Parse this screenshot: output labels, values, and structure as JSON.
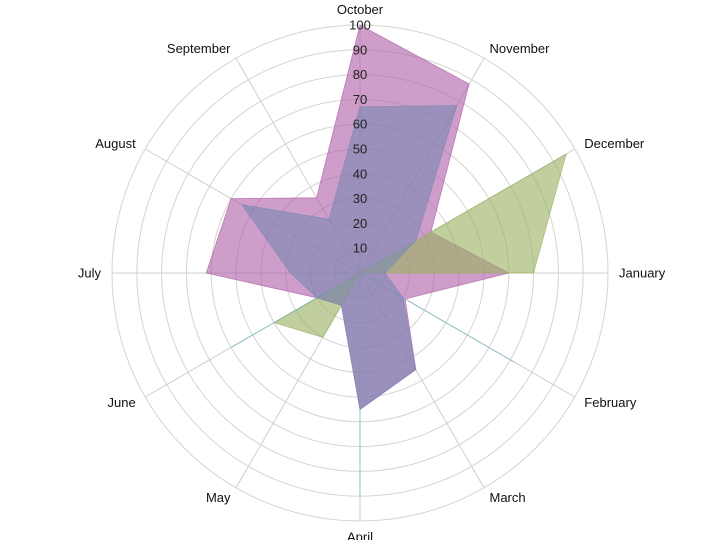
{
  "chart_data": {
    "type": "radar",
    "title": "",
    "rlim": [
      0,
      100
    ],
    "r_ticks": [
      10,
      20,
      30,
      40,
      50,
      60,
      70,
      80,
      90,
      100
    ],
    "categories": [
      "October",
      "November",
      "December",
      "January",
      "February",
      "March",
      "April",
      "May",
      "June",
      "July",
      "August",
      "September"
    ],
    "grid": true,
    "legend": "none",
    "series": [
      {
        "color": "#b061a8",
        "values": [
          100,
          88,
          33,
          60,
          21,
          45,
          55,
          15,
          20,
          62,
          60,
          35
        ]
      },
      {
        "color": "#9bb163",
        "values": [
          0,
          0,
          96,
          70,
          0,
          0,
          0,
          30,
          40,
          0,
          0,
          0
        ]
      },
      {
        "color": "#64b4bd",
        "values": [
          0,
          0,
          0,
          0,
          72,
          0,
          90,
          0,
          60,
          0,
          0,
          0
        ]
      },
      {
        "color": "#7b88b3",
        "values": [
          67,
          78,
          26,
          10,
          20,
          45,
          55,
          15,
          20,
          28,
          55,
          25
        ]
      }
    ]
  }
}
